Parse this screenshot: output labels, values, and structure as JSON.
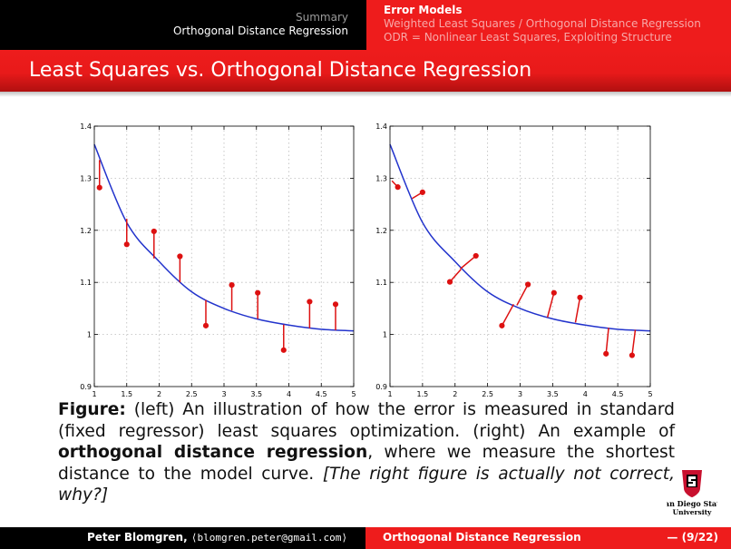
{
  "header": {
    "left_section": "Summary",
    "left_subsection": "Orthogonal Distance Regression",
    "right_items": [
      "Error Models",
      "Weighted Least Squares / Orthogonal Distance Regression",
      "ODR = Nonlinear Least Squares, Exploiting Structure"
    ]
  },
  "slide_title": "Least Squares vs. Orthogonal Distance Regression",
  "chart_data": [
    {
      "type": "line",
      "xlim": [
        1,
        5
      ],
      "ylim": [
        0.9,
        1.4
      ],
      "x_ticks": [
        "1",
        "1.5",
        "2",
        "2.5",
        "3",
        "3.5",
        "4",
        "4.5",
        "5"
      ],
      "y_ticks": [
        "0.9",
        "1",
        "1.1",
        "1.2",
        "1.3",
        "1.4"
      ],
      "grid": true,
      "series": [
        {
          "kind": "curve",
          "color": "#2233cc",
          "x": [
            1.0,
            1.5,
            2.0,
            2.5,
            3.0,
            3.5,
            4.0,
            4.5,
            5.0
          ],
          "y": [
            1.365,
            1.215,
            1.14,
            1.082,
            1.05,
            1.03,
            1.018,
            1.01,
            1.007
          ]
        },
        {
          "kind": "points",
          "color": "#dd1111",
          "x": [
            1.08,
            1.5,
            1.92,
            2.32,
            2.72,
            3.12,
            3.52,
            3.92,
            4.32,
            4.72
          ],
          "y": [
            1.282,
            1.173,
            1.198,
            1.15,
            1.017,
            1.095,
            1.08,
            0.97,
            1.063,
            1.058
          ]
        },
        {
          "kind": "residuals",
          "color": "#dd1111",
          "style": "vertical",
          "from": [
            [
              1.08,
              1.282
            ],
            [
              1.5,
              1.173
            ],
            [
              1.92,
              1.198
            ],
            [
              2.32,
              1.15
            ],
            [
              2.72,
              1.017
            ],
            [
              3.12,
              1.095
            ],
            [
              3.52,
              1.08
            ],
            [
              3.92,
              0.97
            ],
            [
              4.32,
              1.063
            ],
            [
              4.72,
              1.058
            ]
          ],
          "to": [
            [
              1.08,
              1.335
            ],
            [
              1.5,
              1.222
            ],
            [
              1.92,
              1.146
            ],
            [
              2.32,
              1.1
            ],
            [
              2.72,
              1.066
            ],
            [
              3.12,
              1.046
            ],
            [
              3.52,
              1.03
            ],
            [
              3.92,
              1.019
            ],
            [
              4.32,
              1.012
            ],
            [
              4.72,
              1.008
            ]
          ]
        }
      ]
    },
    {
      "type": "line",
      "xlim": [
        1,
        5
      ],
      "ylim": [
        0.9,
        1.4
      ],
      "x_ticks": [
        "1",
        "1.5",
        "2",
        "2.5",
        "3",
        "3.5",
        "4",
        "4.5",
        "5"
      ],
      "y_ticks": [
        "0.9",
        "1",
        "1.1",
        "1.2",
        "1.3",
        "1.4"
      ],
      "grid": true,
      "series": [
        {
          "kind": "curve",
          "color": "#2233cc",
          "x": [
            1.0,
            1.5,
            2.0,
            2.5,
            3.0,
            3.5,
            4.0,
            4.5,
            5.0
          ],
          "y": [
            1.365,
            1.215,
            1.14,
            1.082,
            1.05,
            1.03,
            1.018,
            1.01,
            1.007
          ]
        },
        {
          "kind": "points",
          "color": "#dd1111",
          "x": [
            1.12,
            1.5,
            1.92,
            2.32,
            2.72,
            3.12,
            3.52,
            3.92,
            4.32,
            4.72
          ],
          "y": [
            1.283,
            1.273,
            1.101,
            1.151,
            1.017,
            1.096,
            1.08,
            1.071,
            0.963,
            0.96
          ]
        },
        {
          "kind": "residuals",
          "color": "#dd1111",
          "style": "orthogonal",
          "from": [
            [
              1.12,
              1.283
            ],
            [
              1.5,
              1.273
            ],
            [
              1.92,
              1.101
            ],
            [
              2.32,
              1.151
            ],
            [
              2.72,
              1.017
            ],
            [
              3.12,
              1.096
            ],
            [
              3.52,
              1.08
            ],
            [
              3.92,
              1.071
            ],
            [
              4.32,
              0.963
            ],
            [
              4.72,
              0.96
            ]
          ],
          "to": [
            [
              1.03,
              1.295
            ],
            [
              1.34,
              1.261
            ],
            [
              2.09,
              1.125
            ],
            [
              2.08,
              1.126
            ],
            [
              2.9,
              1.058
            ],
            [
              2.95,
              1.056
            ],
            [
              3.42,
              1.033
            ],
            [
              3.85,
              1.023
            ],
            [
              4.36,
              1.013
            ],
            [
              4.77,
              1.009
            ]
          ]
        }
      ]
    }
  ],
  "caption": {
    "figure_label": "Figure:",
    "text1": "(left) An illustration of how the error is measured in standard (fixed regressor) least squares optimization. (right) An example of",
    "bold_term": "orthogonal distance regression",
    "text2": ", where we measure the shortest distance to the model curve.",
    "italic_note": "[The right figure is actually not correct, why?]"
  },
  "logo": {
    "line1": "San Diego State",
    "line2": "University"
  },
  "footer": {
    "author": "Peter Blomgren,",
    "email": "⟨blomgren.peter@gmail.com⟩",
    "title": "Orthogonal Distance Regression",
    "page": "— (9/22)"
  }
}
